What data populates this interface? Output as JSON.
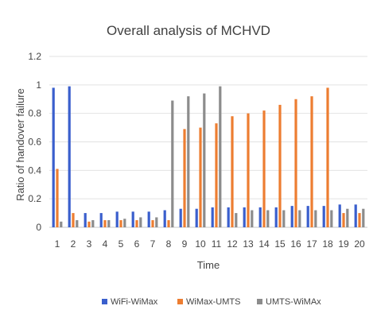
{
  "chart_data": {
    "type": "bar",
    "title": "Overall analysis of MCHVD",
    "xlabel": "Time",
    "ylabel": "Ratio of handover failure",
    "ylim": [
      0,
      1.2
    ],
    "yticks": [
      "0",
      "0.2",
      "0.4",
      "0.6",
      "0.8",
      "1",
      "1.2"
    ],
    "grid": true,
    "legend_position": "bottom",
    "categories": [
      "1",
      "2",
      "3",
      "4",
      "5",
      "6",
      "7",
      "8",
      "9",
      "10",
      "11",
      "12",
      "13",
      "14",
      "15",
      "16",
      "17",
      "18",
      "19",
      "20"
    ],
    "series": [
      {
        "name": "WiFi-WiMax",
        "color": "#3a5fcd",
        "values": [
          0.98,
          0.99,
          0.1,
          0.1,
          0.11,
          0.11,
          0.11,
          0.12,
          0.13,
          0.13,
          0.14,
          0.14,
          0.14,
          0.14,
          0.14,
          0.15,
          0.15,
          0.15,
          0.16,
          0.16
        ]
      },
      {
        "name": "WiMax-UMTS",
        "color": "#ed7d31",
        "values": [
          0.41,
          0.1,
          0.04,
          0.05,
          0.05,
          0.05,
          0.05,
          0.05,
          0.69,
          0.7,
          0.73,
          0.78,
          0.8,
          0.82,
          0.86,
          0.9,
          0.92,
          0.98,
          0.1,
          0.1
        ]
      },
      {
        "name": "UMTS-WiMAx",
        "color": "#8c8c8c",
        "values": [
          0.04,
          0.05,
          0.05,
          0.05,
          0.06,
          0.07,
          0.07,
          0.89,
          0.92,
          0.94,
          0.99,
          0.1,
          0.12,
          0.12,
          0.12,
          0.12,
          0.12,
          0.12,
          0.13,
          0.13
        ]
      }
    ]
  }
}
